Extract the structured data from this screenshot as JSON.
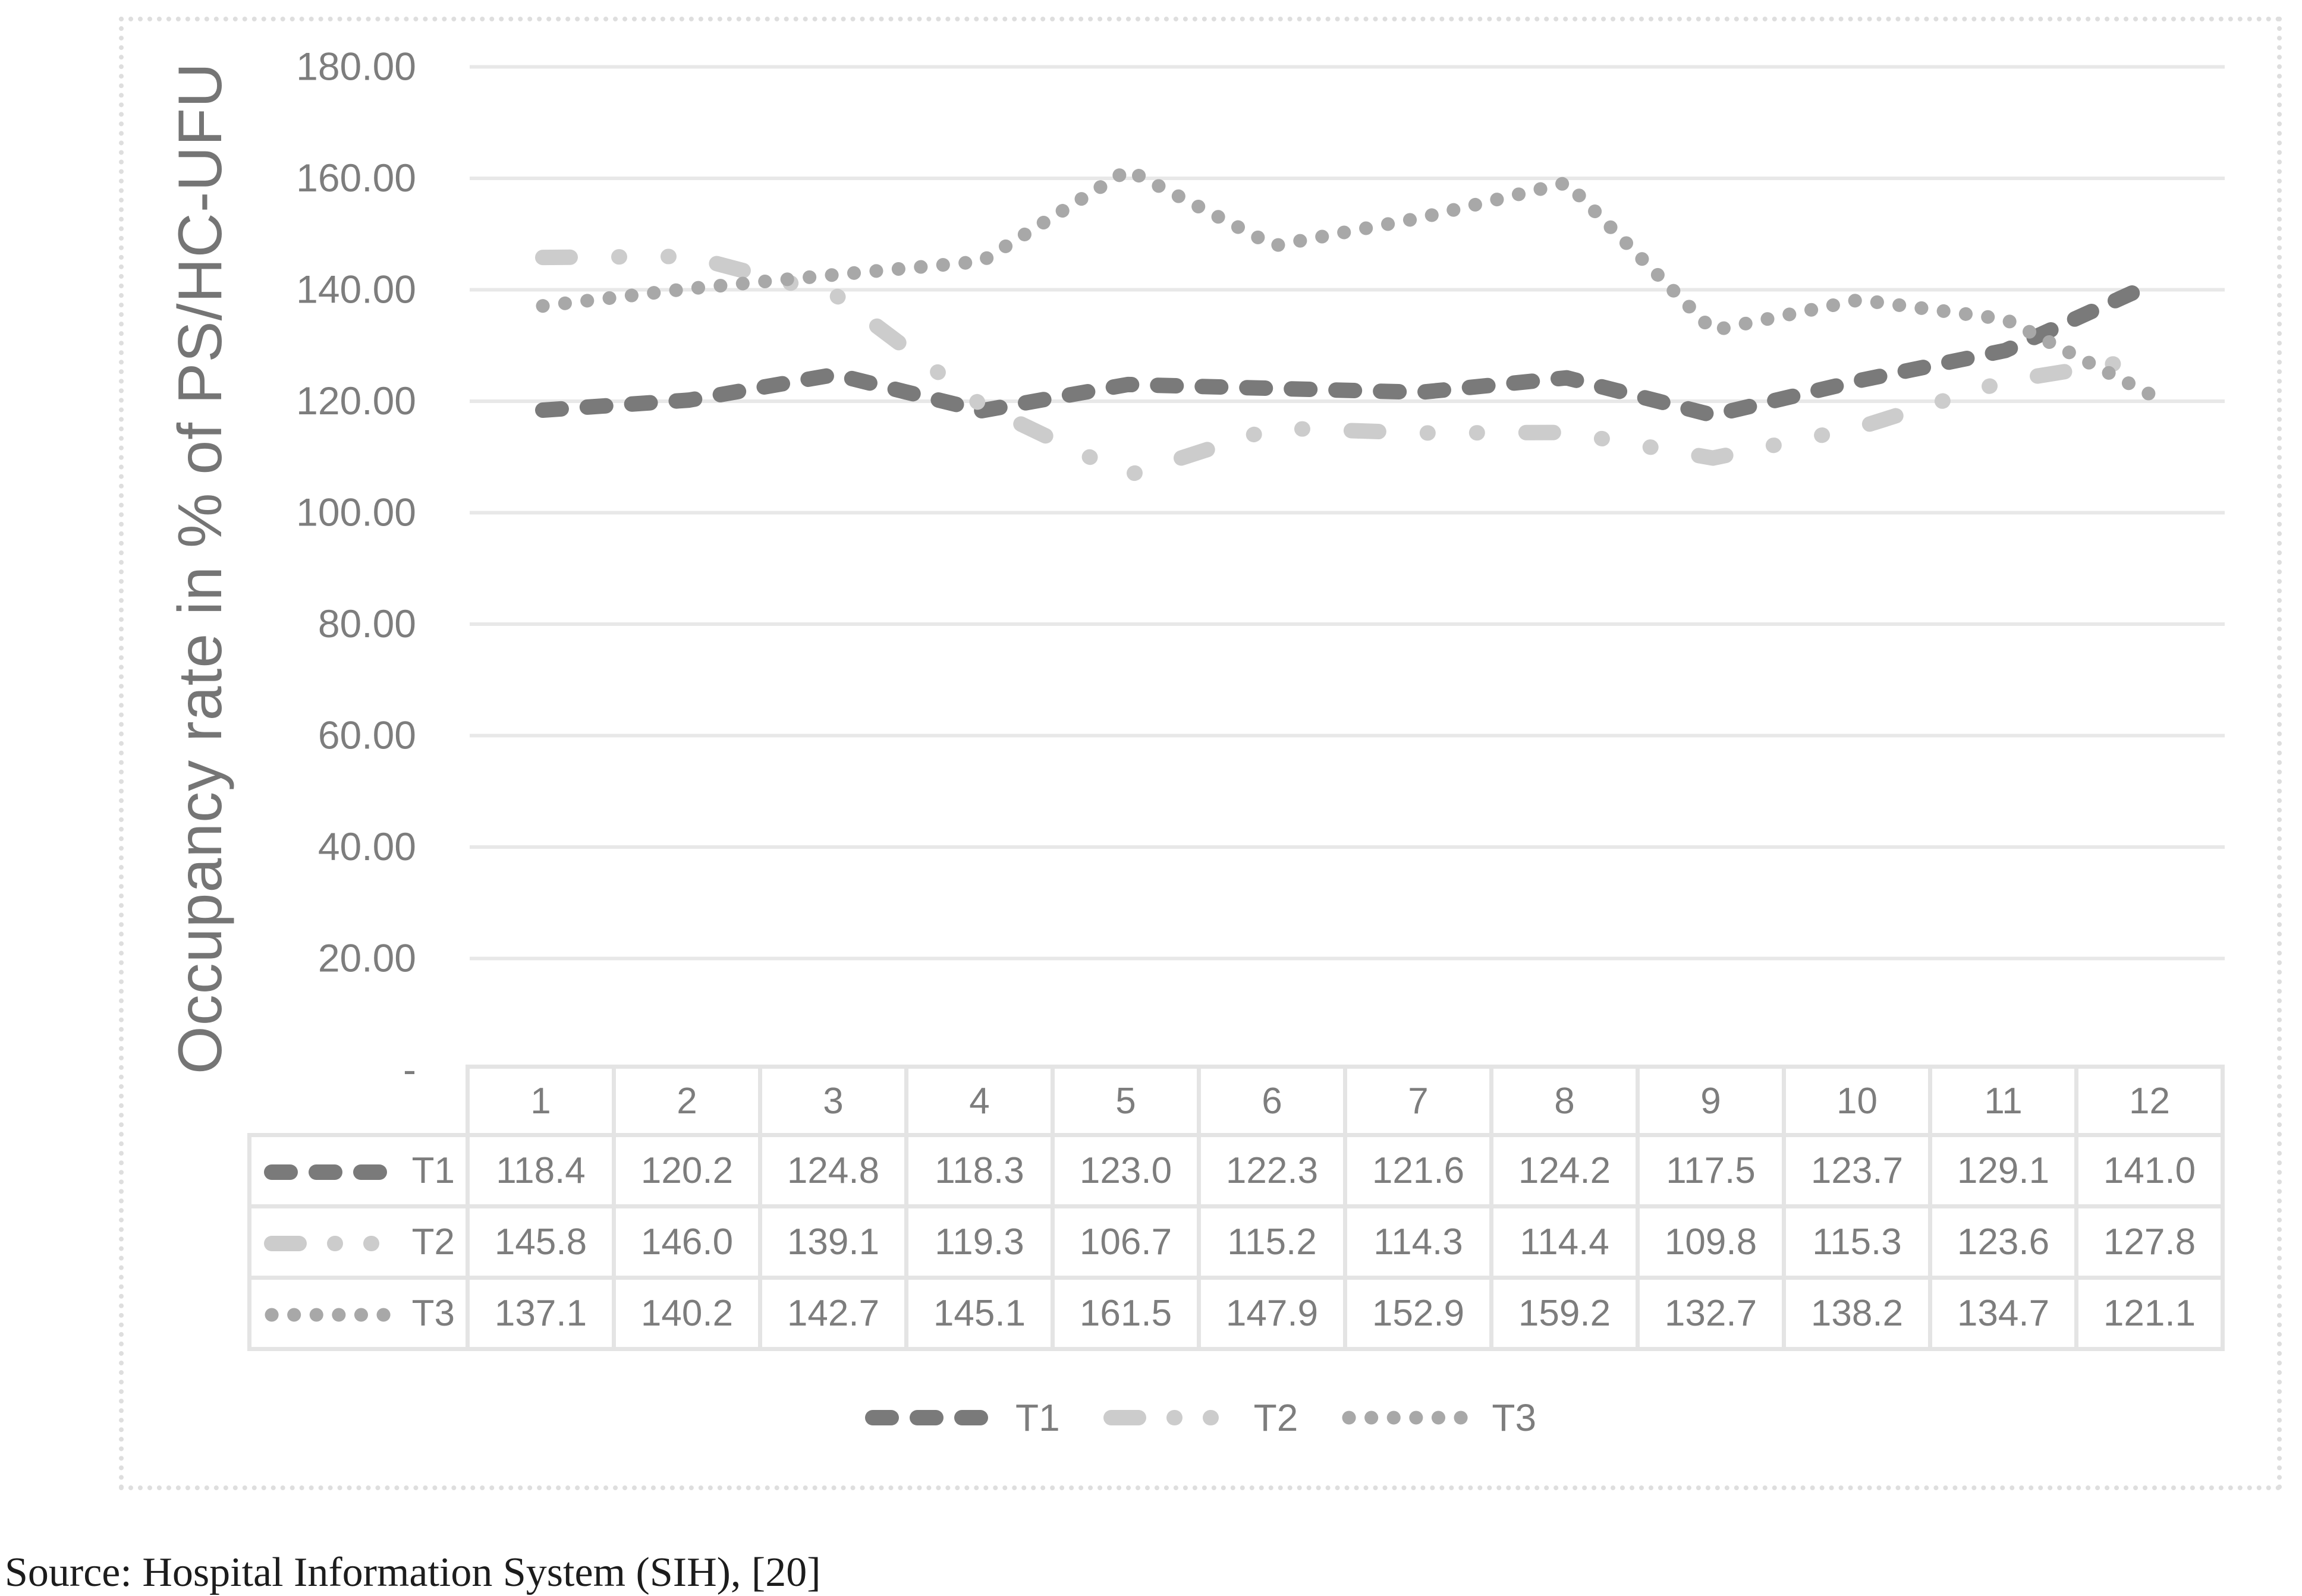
{
  "chart_data": {
    "type": "line",
    "title": "",
    "y_axis_title": "Occupancy rate in % of PS/HC-UFU",
    "xlabel": "",
    "ylabel": "Occupancy rate in % of PS/HC-UFU",
    "x_categories": [
      "1",
      "2",
      "3",
      "4",
      "5",
      "6",
      "7",
      "8",
      "9",
      "10",
      "11",
      "12"
    ],
    "ylim": [
      0,
      180
    ],
    "y_tick_step": 20,
    "grid": true,
    "legend_position": "bottom",
    "data_table_shown": true,
    "y_ticks": [
      {
        "label": "180.00",
        "value": 180
      },
      {
        "label": "160.00",
        "value": 160
      },
      {
        "label": "140.00",
        "value": 140
      },
      {
        "label": "120.00",
        "value": 120
      },
      {
        "label": "100.00",
        "value": 100
      },
      {
        "label": "80.00",
        "value": 80
      },
      {
        "label": "60.00",
        "value": 60
      },
      {
        "label": "40.00",
        "value": 40
      },
      {
        "label": "20.00",
        "value": 20
      },
      {
        "label": "-",
        "value": 0
      }
    ],
    "series": [
      {
        "name": "T1",
        "dash_style": "dash",
        "color": "#7a7a7a",
        "values": [
          118.4,
          120.2,
          124.8,
          118.3,
          123.0,
          122.3,
          121.6,
          124.2,
          117.5,
          123.7,
          129.1,
          141.0
        ]
      },
      {
        "name": "T2",
        "dash_style": "long-dash-dot-dot",
        "color": "#cccccc",
        "values": [
          145.8,
          146.0,
          139.1,
          119.3,
          106.7,
          115.2,
          114.3,
          114.4,
          109.8,
          115.3,
          123.6,
          127.8
        ]
      },
      {
        "name": "T3",
        "dash_style": "round-dot",
        "color": "#a8a8a8",
        "values": [
          137.1,
          140.2,
          142.7,
          145.1,
          161.5,
          147.9,
          152.9,
          159.2,
          132.7,
          138.2,
          134.7,
          121.1
        ]
      }
    ],
    "colors": {
      "gridline": "#e8e8e8",
      "axis_text": "#7d7d7d",
      "table_border": "#e4e4e4",
      "figure_border": "#dedede"
    }
  },
  "source_note": "Source: Hospital Information System (SIH), [20]"
}
